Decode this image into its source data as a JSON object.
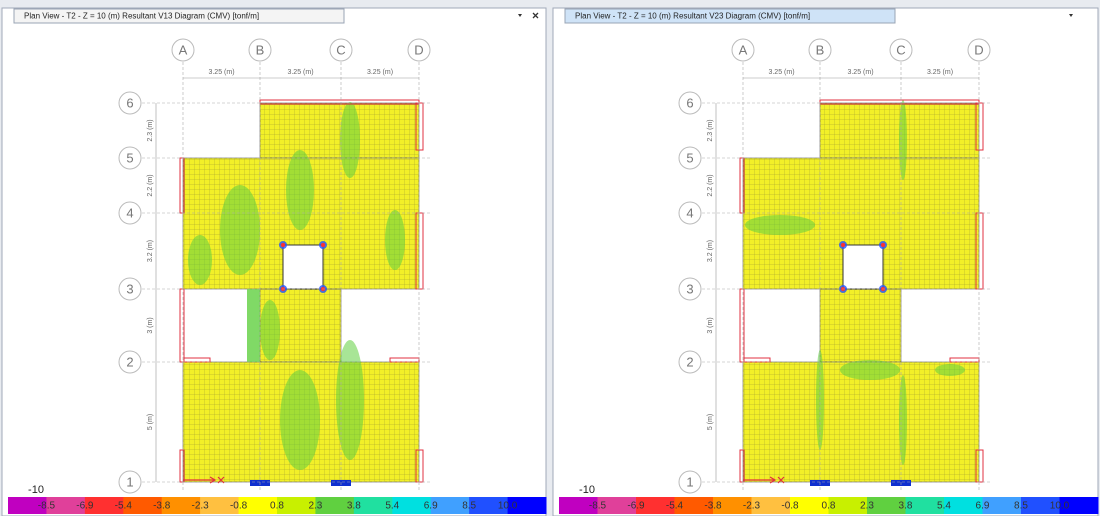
{
  "panels": [
    {
      "tab": "Plan View - T2 - Z = 10 (m)   Resultant V13 Diagram   (CMV)  [tonf/m]",
      "grid_x": [
        "A",
        "B",
        "C",
        "D"
      ],
      "grid_y": [
        "6",
        "5",
        "4",
        "3",
        "2",
        "1"
      ],
      "x_spacings": [
        "3.25 (m)",
        "3.25 (m)",
        "3.25 (m)"
      ],
      "y_spacings": [
        "2.3 (m)",
        "2.2 (m)",
        "3.2 (m)",
        "3 (m)",
        "5 (m)"
      ],
      "legend_min": "-10",
      "legend_labels": [
        "-8.5",
        "-6.9",
        "-5.4",
        "-3.8",
        "-2.3",
        "-0.8",
        "0.8",
        "2.3",
        "3.8",
        "5.4",
        "6.9",
        "8.5",
        "10.0"
      ]
    },
    {
      "tab": "Plan View - T2 - Z = 10 (m)   Resultant V23 Diagram   (CMV)  [tonf/m]",
      "grid_x": [
        "A",
        "B",
        "C",
        "D"
      ],
      "grid_y": [
        "6",
        "5",
        "4",
        "3",
        "2",
        "1"
      ],
      "x_spacings": [
        "3.25 (m)",
        "3.25 (m)",
        "3.25 (m)"
      ],
      "y_spacings": [
        "2.3 (m)",
        "2.2 (m)",
        "3.2 (m)",
        "3 (m)",
        "5 (m)"
      ],
      "legend_min": "-10",
      "legend_labels": [
        "-8.5",
        "-6.9",
        "-5.4",
        "-3.8",
        "-2.3",
        "-0.8",
        "0.8",
        "2.3",
        "3.8",
        "5.4",
        "6.9",
        "8.5",
        "10.0"
      ]
    }
  ],
  "legend_colors": [
    "#c000c0",
    "#e0409a",
    "#ff3030",
    "#ff5a00",
    "#ff9000",
    "#ffc040",
    "#ffff00",
    "#c8f000",
    "#60d040",
    "#20e0a0",
    "#00e0e0",
    "#40a0ff",
    "#2050ff",
    "#0000ff"
  ]
}
